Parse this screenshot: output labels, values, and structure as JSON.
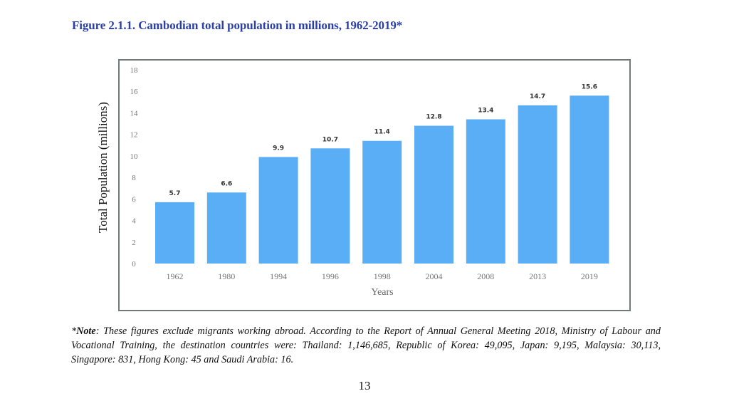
{
  "figure_title": "Figure 2.1.1. Cambodian total population in millions, 1962-2019*",
  "chart_data": {
    "type": "bar",
    "title": "Figure 2.1.1. Cambodian total population in millions, 1962-2019*",
    "xlabel": "Years",
    "ylabel": "Total Population (millions)",
    "categories": [
      "1962",
      "1980",
      "1994",
      "1996",
      "1998",
      "2004",
      "2008",
      "2013",
      "2019"
    ],
    "values": [
      5.7,
      6.6,
      9.9,
      10.7,
      11.4,
      12.8,
      13.4,
      14.7,
      15.6
    ],
    "value_labels": [
      "5.7",
      "6.6",
      "9.9",
      "10.7",
      "11.4",
      "12.8",
      "13.4",
      "14.7",
      "15.6"
    ],
    "yticks": [
      0,
      2,
      4,
      6,
      8,
      10,
      12,
      14,
      16,
      18
    ],
    "ylim": [
      0,
      18
    ],
    "grid": false,
    "bar_color": "#5aaef5"
  },
  "note": {
    "prefix": "*",
    "label": "Note",
    "text": ": These figures exclude migrants working abroad. According to the Report of Annual General Meeting 2018, Ministry of Labour and Vocational Training, the destination countries were: Thailand: 1,146,685, Republic of Korea: 49,095, Japan: 9,195, Malaysia: 30,113, Singapore: 831, Hong Kong: 45 and Saudi Arabia: 16."
  },
  "page_number": "13"
}
